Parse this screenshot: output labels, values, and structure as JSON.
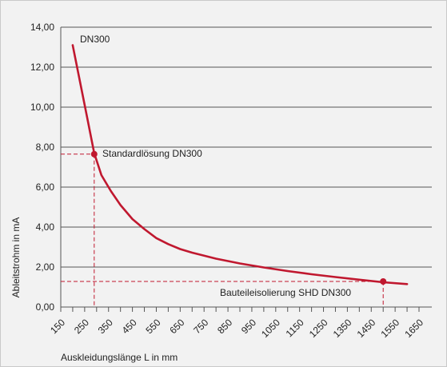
{
  "chart_data": {
    "type": "line",
    "title": "",
    "xlabel": "Auskleidungslänge L in mm",
    "ylabel": "Ableitstrohm in mA",
    "xlim": [
      150,
      1650
    ],
    "ylim": [
      0,
      14
    ],
    "x_ticks": [
      150,
      250,
      350,
      450,
      550,
      650,
      750,
      850,
      950,
      1050,
      1150,
      1250,
      1350,
      1450,
      1550,
      1650
    ],
    "y_ticks": [
      {
        "value": 0,
        "label": "0,00"
      },
      {
        "value": 2,
        "label": "2,00"
      },
      {
        "value": 4,
        "label": "4,00"
      },
      {
        "value": 6,
        "label": "6,00"
      },
      {
        "value": 8,
        "label": "8,00"
      },
      {
        "value": 10,
        "label": "10,00"
      },
      {
        "value": 12,
        "label": "12,00"
      },
      {
        "value": 14,
        "label": "14,00"
      }
    ],
    "grid": "horizontal",
    "series": [
      {
        "name": "DN300",
        "color": "#c0182f",
        "x": [
          200,
          230,
          260,
          290,
          320,
          360,
          400,
          450,
          500,
          550,
          600,
          650,
          700,
          800,
          900,
          1000,
          1100,
          1200,
          1300,
          1400,
          1500,
          1600
        ],
        "y": [
          13.1,
          11.3,
          9.5,
          7.7,
          6.6,
          5.8,
          5.1,
          4.4,
          3.9,
          3.45,
          3.15,
          2.9,
          2.72,
          2.42,
          2.18,
          1.98,
          1.8,
          1.64,
          1.5,
          1.37,
          1.24,
          1.15
        ]
      }
    ],
    "annotations": [
      {
        "label": "Standardlösung DN300",
        "x": 290,
        "y": 7.65,
        "marker": true
      },
      {
        "label": "Bauteileisolierung SHD DN300",
        "x": 1500,
        "y": 1.28,
        "marker": true
      }
    ],
    "line_color": "#c0182f",
    "grid_color": "#555555"
  }
}
